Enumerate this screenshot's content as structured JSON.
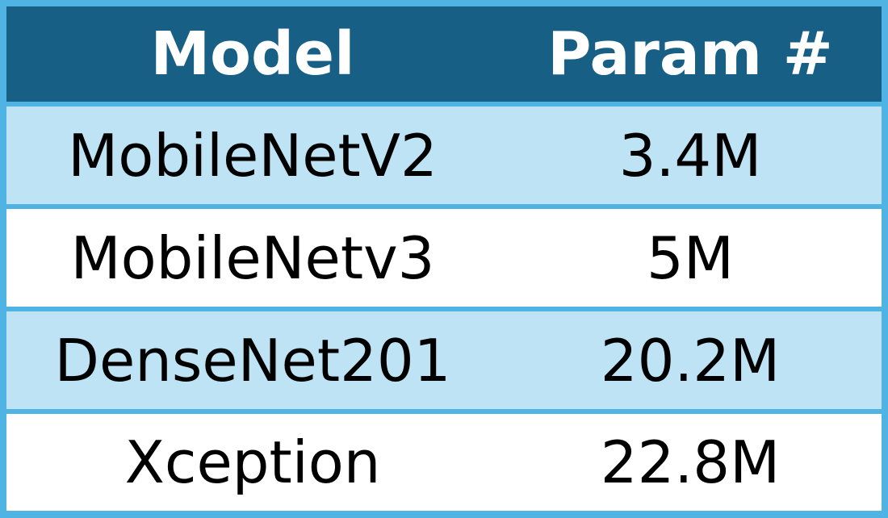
{
  "table": {
    "headers": [
      "Model",
      "Param #"
    ],
    "rows": [
      [
        "MobileNetV2",
        "3.4M"
      ],
      [
        "MobileNetv3",
        "5M"
      ],
      [
        "DenseNet201",
        "20.2M"
      ],
      [
        "Xception",
        "22.8M"
      ]
    ]
  },
  "colors": {
    "header_bg": "#175f84",
    "header_text": "#ffffff",
    "band_light": "#bee3f5",
    "band_white": "#ffffff",
    "border": "#4fb3e3"
  }
}
